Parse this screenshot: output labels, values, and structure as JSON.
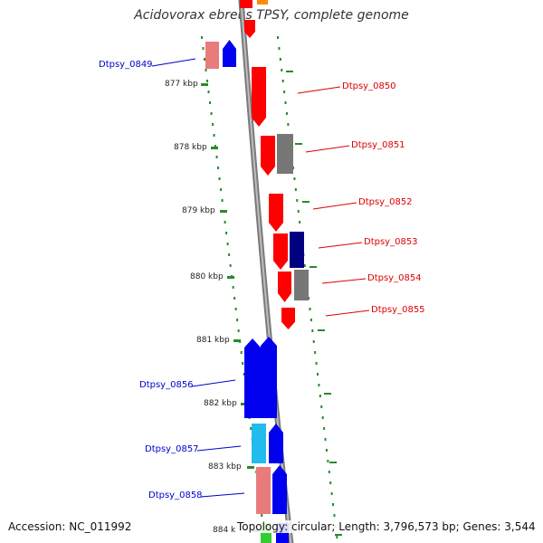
{
  "title": "Acidovorax ebreus TPSY, complete genome",
  "footer": {
    "accession": "Accession: NC_011992",
    "summary": "Topology: circular; Length: 3,796,573 bp; Genes: 3,544"
  },
  "colors": {
    "backbone": "#8c8c8c",
    "gc_marks": "#2a8a2a",
    "forward_label": "#0000cc",
    "reverse_label": "#dd0000"
  },
  "ticks": [
    {
      "label": "877 kbp"
    },
    {
      "label": "878 kbp"
    },
    {
      "label": "879 kbp"
    },
    {
      "label": "880 kbp"
    },
    {
      "label": "881 kbp"
    },
    {
      "label": "882 kbp"
    },
    {
      "label": "883 kbp"
    },
    {
      "label": "884 k"
    }
  ],
  "genes": [
    {
      "id": "Dtpsy_0849",
      "strand": "forward",
      "label_side": "left",
      "color": "#e87c7c"
    },
    {
      "id": "Dtpsy_0850",
      "strand": "reverse",
      "label_side": "right",
      "color": "#ff0000"
    },
    {
      "id": "Dtpsy_0851",
      "strand": "reverse",
      "label_side": "right",
      "color": "#ff0000"
    },
    {
      "id": "Dtpsy_0852",
      "strand": "reverse",
      "label_side": "right",
      "color": "#ff0000"
    },
    {
      "id": "Dtpsy_0853",
      "strand": "reverse",
      "label_side": "right",
      "color": "#ff0000"
    },
    {
      "id": "Dtpsy_0854",
      "strand": "reverse",
      "label_side": "right",
      "color": "#ff0000"
    },
    {
      "id": "Dtpsy_0855",
      "strand": "reverse",
      "label_side": "right",
      "color": "#ff0000"
    },
    {
      "id": "Dtpsy_0856",
      "strand": "forward",
      "label_side": "left",
      "color": "#0000ee"
    },
    {
      "id": "Dtpsy_0857",
      "strand": "forward",
      "label_side": "left",
      "color": "#22bbee"
    },
    {
      "id": "Dtpsy_0858",
      "strand": "forward",
      "label_side": "left",
      "color": "#e87c7c"
    }
  ]
}
